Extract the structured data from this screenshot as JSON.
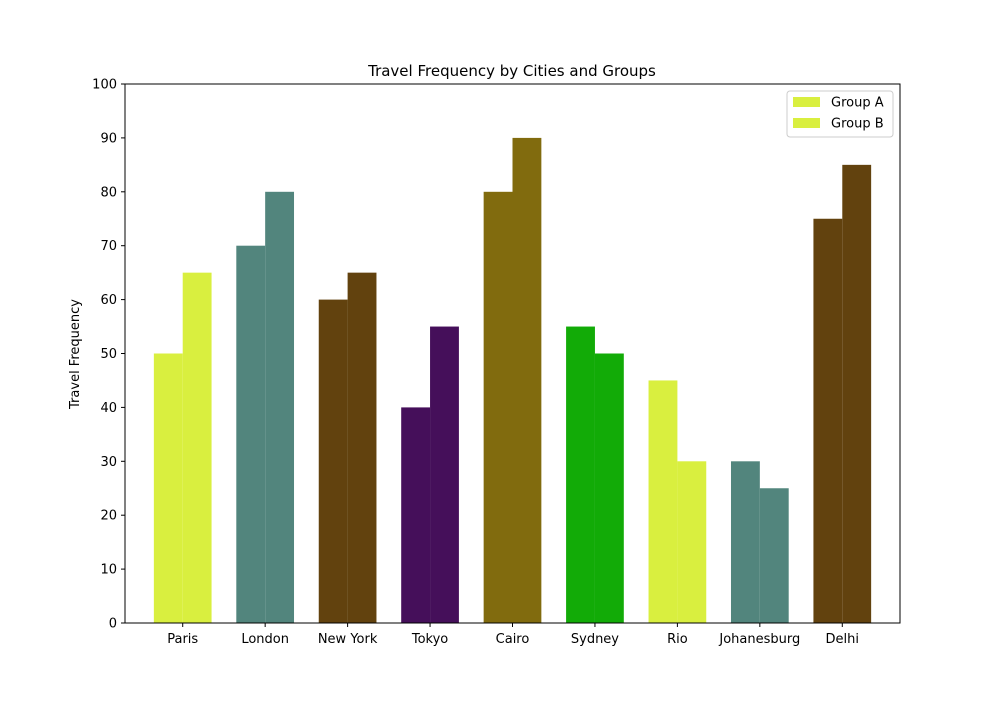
{
  "chart_data": {
    "type": "bar",
    "title": "Travel Frequency by Cities and Groups",
    "xlabel": "",
    "ylabel": "Travel Frequency",
    "ylim": [
      0,
      100
    ],
    "yticks": [
      0,
      10,
      20,
      30,
      40,
      50,
      60,
      70,
      80,
      90,
      100
    ],
    "categories": [
      "Paris",
      "London",
      "New York",
      "Tokyo",
      "Cairo",
      "Sydney",
      "Rio",
      "Johanesburg",
      "Delhi"
    ],
    "series": [
      {
        "name": "Group A",
        "values": [
          50,
          70,
          60,
          40,
          80,
          55,
          45,
          30,
          75
        ]
      },
      {
        "name": "Group B",
        "values": [
          65,
          80,
          65,
          55,
          90,
          50,
          30,
          25,
          85
        ]
      }
    ],
    "category_colors": [
      "#d9ef3f",
      "#52857d",
      "#62420e",
      "#450f5a",
      "#816b0e",
      "#12ab07",
      "#d9ef3f",
      "#52857d",
      "#62420e"
    ],
    "legend_color": "#d9ef3f",
    "legend_position": "top-right",
    "grid": false
  }
}
